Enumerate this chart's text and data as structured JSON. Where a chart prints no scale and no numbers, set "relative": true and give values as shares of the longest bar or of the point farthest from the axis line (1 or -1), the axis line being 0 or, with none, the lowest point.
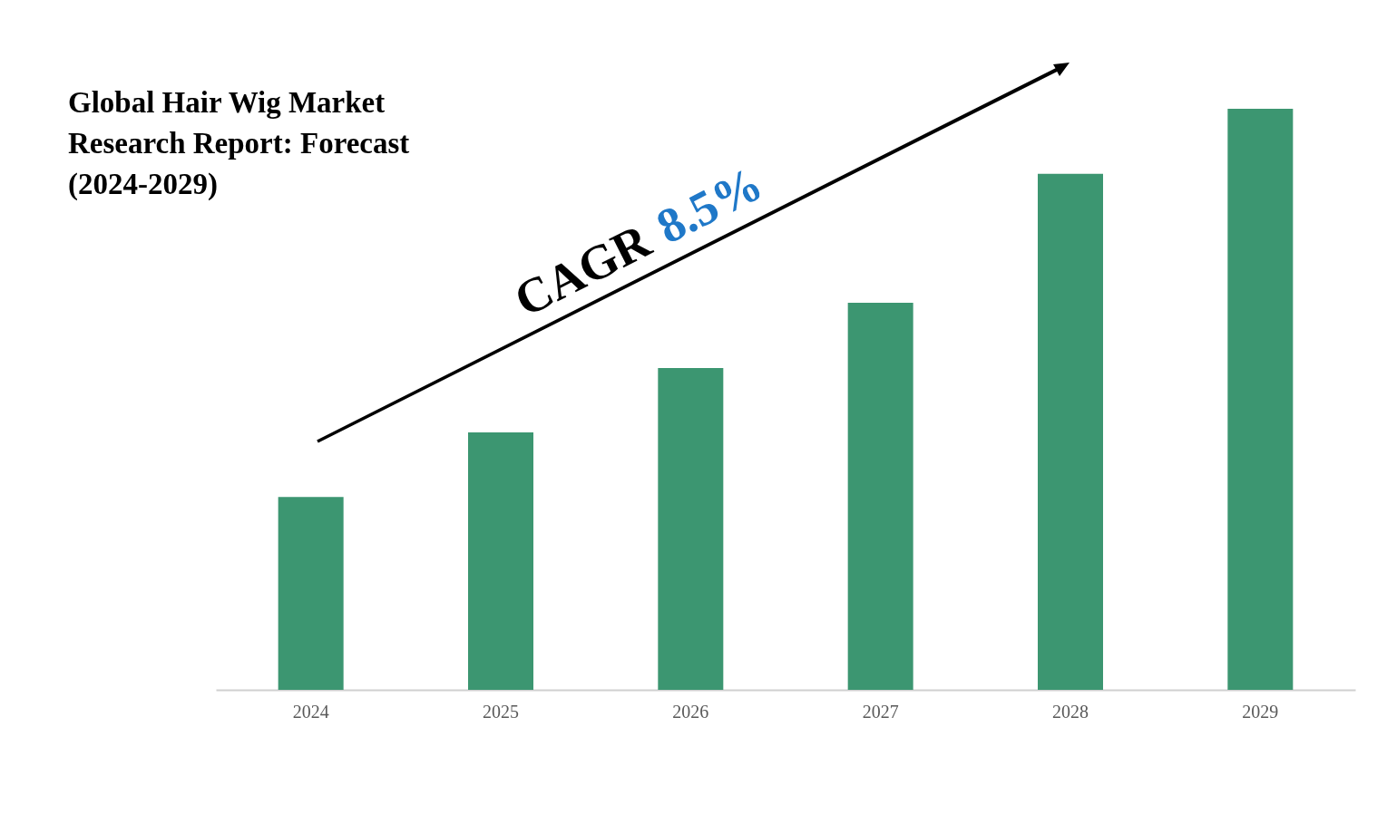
{
  "chart_data": {
    "type": "bar",
    "title": "Global Hair Wig Market Research Report: Forecast (2024-2029)",
    "categories": [
      "2024",
      "2025",
      "2026",
      "2027",
      "2028",
      "2029"
    ],
    "values": [
      0.332,
      0.443,
      0.554,
      0.666,
      0.888,
      1
    ],
    "color": "#3c9671",
    "relative": true,
    "annotations": [
      "CAGR 8.5%"
    ]
  }
}
